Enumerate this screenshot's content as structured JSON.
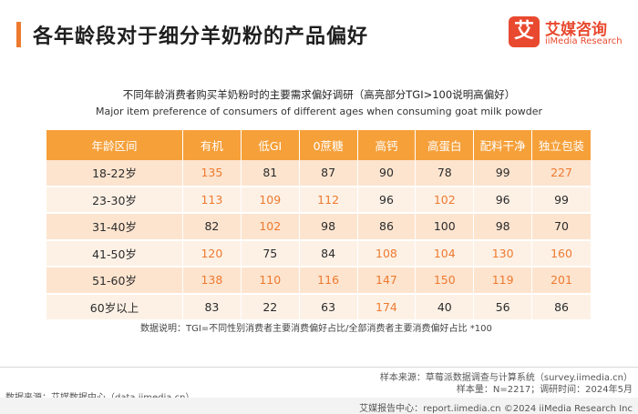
{
  "page": {
    "title": "各年龄段对于细分羊奶粉的产品偏好"
  },
  "logo": {
    "mark": "艾",
    "name_cn": "艾媒咨询",
    "name_en": "iiMedia Research"
  },
  "chart_data": {
    "type": "table",
    "title": "不同年龄消费者购买羊奶粉时的主要需求偏好调研（高亮部分TGI>100说明高偏好）",
    "subtitle": "Major item preference of consumers of different ages when consuming goat milk powder",
    "columns": [
      "年龄区间",
      "有机",
      "低GI",
      "0蔗糖",
      "高钙",
      "高蛋白",
      "配料干净",
      "独立包装"
    ],
    "rows": [
      {
        "label": "18-22岁",
        "values": [
          135,
          81,
          87,
          90,
          78,
          99,
          227
        ]
      },
      {
        "label": "23-30岁",
        "values": [
          113,
          109,
          112,
          96,
          102,
          96,
          99
        ]
      },
      {
        "label": "31-40岁",
        "values": [
          82,
          102,
          98,
          86,
          100,
          98,
          70
        ]
      },
      {
        "label": "41-50岁",
        "values": [
          120,
          75,
          84,
          108,
          104,
          130,
          160
        ]
      },
      {
        "label": "51-60岁",
        "values": [
          138,
          110,
          116,
          147,
          150,
          119,
          201
        ]
      },
      {
        "label": "60岁以上",
        "values": [
          83,
          22,
          63,
          174,
          40,
          56,
          86
        ]
      }
    ],
    "highlight_threshold": 100,
    "highlight_color": "#ee7a2f",
    "header_color": "#f6a03a"
  },
  "notes": {
    "definition": "数据说明：TGI=不同性别消费者主要消费偏好占比/全部消费者主要消费偏好占比 *100"
  },
  "sources": {
    "data_source": "数据来源：艾媒数据中心（data.iimedia.cn）",
    "sample_source": "样本来源：草莓派数据调查与计算系统（survey.iimedia.cn）",
    "sample_info": "样本量：N=2217；调研时间：2024年5月"
  },
  "footer": {
    "text": "艾媒报告中心：report.iimedia.cn ©2024 iiMedia Research Inc"
  }
}
